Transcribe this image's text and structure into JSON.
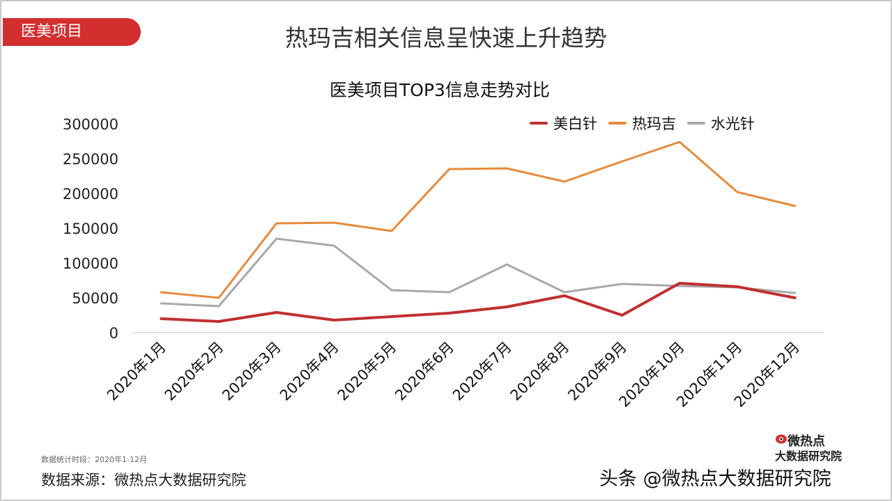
{
  "header": {
    "tag": "医美项目",
    "title": "热玛吉相关信息呈快速上升趋势"
  },
  "chart_data": {
    "type": "line",
    "title": "医美项目TOP3信息走势对比",
    "categories": [
      "2020年1月",
      "2020年2月",
      "2020年3月",
      "2020年4月",
      "2020年5月",
      "2020年6月",
      "2020年7月",
      "2020年8月",
      "2020年9月",
      "2020年10月",
      "2020年11月",
      "2020年12月"
    ],
    "y_ticks": [
      "0",
      "50000",
      "100000",
      "150000",
      "200000",
      "250000",
      "300000"
    ],
    "ylim": [
      0,
      300000
    ],
    "grid": false,
    "legend_position": "top-right",
    "series": [
      {
        "name": "美白针",
        "color": "#c0302f",
        "width": 4,
        "values": [
          20000,
          16000,
          29000,
          18000,
          23000,
          28000,
          37000,
          53000,
          25000,
          71000,
          66000,
          50000
        ]
      },
      {
        "name": "热玛吉",
        "color": "#e8893a",
        "width": 3,
        "values": [
          58000,
          50000,
          157000,
          158000,
          146000,
          235000,
          236000,
          217000,
          246000,
          274000,
          202000,
          182000
        ]
      },
      {
        "name": "水光针",
        "color": "#a8a8a8",
        "width": 3,
        "values": [
          42000,
          38000,
          135000,
          125000,
          61000,
          58000,
          98000,
          58000,
          70000,
          67000,
          65000,
          57000
        ]
      }
    ]
  },
  "footer": {
    "period": "数据统计时段：2020年1-12月",
    "source": "数据来源：微热点大数据研究院",
    "logo_top": "微热点",
    "logo_bottom": "大数据研究院",
    "watermark": "头条 @微热点大数据研究院"
  }
}
